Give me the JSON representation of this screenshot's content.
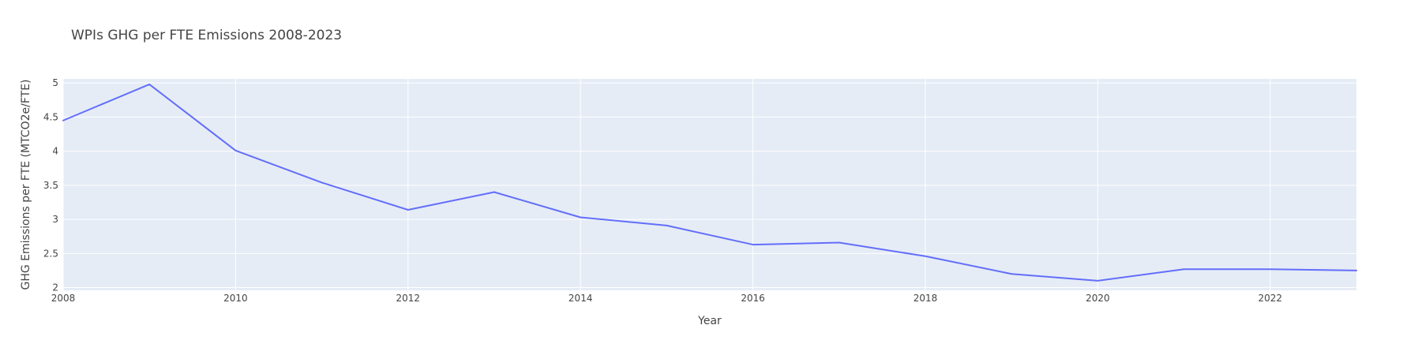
{
  "chart_data": {
    "type": "line",
    "title": "WPIs GHG per FTE Emissions 2008-2023",
    "xlabel": "Year",
    "ylabel": "GHG Emissions per FTE (MTCO2e/FTE)",
    "xlim": [
      2008,
      2023
    ],
    "ylim": [
      1.96,
      5.06
    ],
    "grid": true,
    "legend": "none",
    "x_ticks": [
      "2008",
      "2010",
      "2012",
      "2014",
      "2016",
      "2018",
      "2020",
      "2022"
    ],
    "y_ticks": [
      "2",
      "2.5",
      "3",
      "3.5",
      "4",
      "4.5",
      "5"
    ],
    "series": [
      {
        "color": "#636efa",
        "x": [
          2008,
          2009,
          2010,
          2011,
          2012,
          2013,
          2014,
          2015,
          2016,
          2017,
          2018,
          2019,
          2020,
          2021,
          2022,
          2023
        ],
        "y": [
          4.45,
          4.98,
          4.01,
          3.54,
          3.14,
          3.4,
          3.03,
          2.91,
          2.63,
          2.66,
          2.46,
          2.2,
          2.1,
          2.27,
          2.27,
          2.25
        ]
      }
    ],
    "plot_bg": "#e5ecf6",
    "grid_color": "#ffffff"
  }
}
